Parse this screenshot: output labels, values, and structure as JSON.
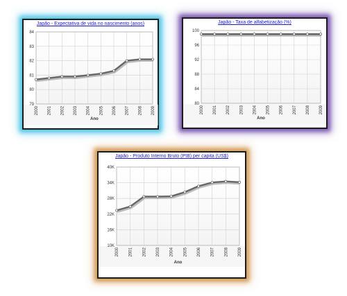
{
  "chart_data": [
    {
      "type": "line",
      "title": "Japão - Expectativa de vida no nascimento (anos)",
      "xlabel": "Ano",
      "ylabel": "",
      "x": [
        "2000",
        "2001",
        "2002",
        "2003",
        "2004",
        "2005",
        "2006",
        "2007",
        "2008",
        "2009"
      ],
      "values": [
        80.7,
        80.8,
        80.9,
        80.9,
        81.0,
        81.1,
        81.3,
        82.0,
        82.1,
        82.1
      ],
      "ylim": [
        79,
        84
      ],
      "yticks": [
        "79",
        "80",
        "81",
        "82",
        "83",
        "84"
      ],
      "grid": true
    },
    {
      "type": "line",
      "title": "Japão - Taxa de alfabetização (%)",
      "xlabel": "Ano",
      "ylabel": "",
      "x": [
        "2000",
        "2001",
        "2002",
        "2003",
        "2004",
        "2005",
        "2006",
        "2007",
        "2008",
        "2009"
      ],
      "values": [
        99,
        99,
        99,
        99,
        99,
        99,
        99,
        99,
        99,
        99
      ],
      "ylim": [
        80,
        100
      ],
      "yticks": [
        "80",
        "84",
        "88",
        "92",
        "96",
        "100"
      ],
      "grid": true
    },
    {
      "type": "line",
      "title": "Japão - Produto Interno Bruto (PIB) per capita (US$)",
      "xlabel": "Ano",
      "ylabel": "",
      "x": [
        "2000",
        "2001",
        "2002",
        "2003",
        "2004",
        "2005",
        "2006",
        "2007",
        "2008",
        "2009"
      ],
      "values": [
        23400,
        24900,
        28700,
        28700,
        28800,
        30400,
        32700,
        34100,
        34500,
        34200
      ],
      "ylim": [
        10000,
        40000
      ],
      "yticks": [
        "10K",
        "16K",
        "22K",
        "28K",
        "34K",
        "40K"
      ],
      "grid": true
    }
  ],
  "colors": {
    "line": "#666666",
    "marker_fill": "#ffffff",
    "grid": "#d0d0d0",
    "title": "#1a1acc",
    "glow_1": "#54c6e6",
    "glow_2": "#7e5bb2",
    "glow_3": "#d39a56"
  }
}
